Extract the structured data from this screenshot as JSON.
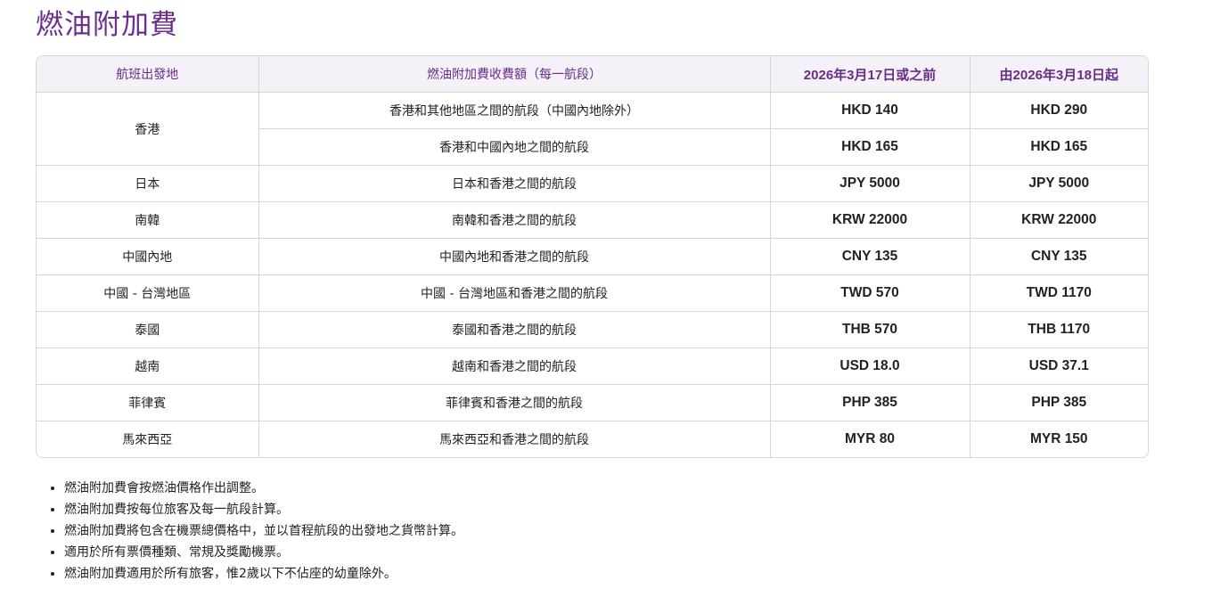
{
  "title": "燃油附加費",
  "table": {
    "headers": [
      "航班出發地",
      "燃油附加費收費額（每一航段）",
      "2026年3月17日或之前",
      "由2026年3月18日起"
    ],
    "groups": [
      {
        "origin": "香港",
        "rows": [
          {
            "route": "香港和其他地區之間的航段（中國內地除外）",
            "before": "HKD 140",
            "after": "HKD 290"
          },
          {
            "route": "香港和中國內地之間的航段",
            "before": "HKD 165",
            "after": "HKD 165"
          }
        ]
      },
      {
        "origin": "日本",
        "rows": [
          {
            "route": "日本和香港之間的航段",
            "before": "JPY 5000",
            "after": "JPY 5000"
          }
        ]
      },
      {
        "origin": "南韓",
        "rows": [
          {
            "route": "南韓和香港之間的航段",
            "before": "KRW 22000",
            "after": "KRW 22000"
          }
        ]
      },
      {
        "origin": "中國內地",
        "rows": [
          {
            "route": "中國內地和香港之間的航段",
            "before": "CNY 135",
            "after": "CNY 135"
          }
        ]
      },
      {
        "origin": "中國 - 台灣地區",
        "rows": [
          {
            "route": "中國 - 台灣地區和香港之間的航段",
            "before": "TWD 570",
            "after": "TWD 1170"
          }
        ]
      },
      {
        "origin": "泰國",
        "rows": [
          {
            "route": "泰國和香港之間的航段",
            "before": "THB 570",
            "after": "THB 1170"
          }
        ]
      },
      {
        "origin": "越南",
        "rows": [
          {
            "route": "越南和香港之間的航段",
            "before": "USD 18.0",
            "after": "USD 37.1"
          }
        ]
      },
      {
        "origin": "菲律賓",
        "rows": [
          {
            "route": "菲律賓和香港之間的航段",
            "before": "PHP 385",
            "after": "PHP 385"
          }
        ]
      },
      {
        "origin": "馬來西亞",
        "rows": [
          {
            "route": "馬來西亞和香港之間的航段",
            "before": "MYR 80",
            "after": "MYR 150"
          }
        ]
      }
    ]
  },
  "notes": [
    "燃油附加費會按燃油價格作出調整。",
    "燃油附加費按每位旅客及每一航段計算。",
    "燃油附加費將包含在機票總價格中，並以首程航段的出發地之貨幣計算。",
    "適用於所有票價種類、常規及獎勵機票。",
    "燃油附加費適用於所有旅客，惟2歲以下不佔座的幼童除外。"
  ],
  "colors": {
    "accent": "#6b2f8f",
    "header_bg": "#f4f2f8",
    "border": "#d6d6d9"
  }
}
